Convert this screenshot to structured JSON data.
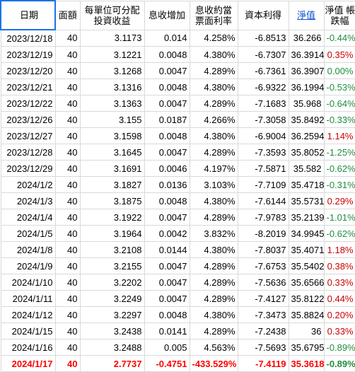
{
  "headers": {
    "date": "日期",
    "face": "面額",
    "distributable_line1": "每單位可分配",
    "distributable_line2": "投資收益",
    "interest_increase": "息收增加",
    "coupon_line1": "息收約當",
    "coupon_line2": "票面利率",
    "capital_gain": "資本利得",
    "nav": "淨值",
    "nav_change_line1": "淨值 帳",
    "nav_change_line2": "跌幅"
  },
  "rows": [
    {
      "date": "2023/12/18",
      "face": "40",
      "dist": "3.1173",
      "inc": "0.014",
      "rate": "4.258%",
      "gain": "-6.8513",
      "nav": "36.266",
      "chg": "-0.44%",
      "dir": "neg"
    },
    {
      "date": "2023/12/19",
      "face": "40",
      "dist": "3.1221",
      "inc": "0.0048",
      "rate": "4.380%",
      "gain": "-6.7307",
      "nav": "36.3914",
      "chg": "0.35%",
      "dir": "pos"
    },
    {
      "date": "2023/12/20",
      "face": "40",
      "dist": "3.1268",
      "inc": "0.0047",
      "rate": "4.289%",
      "gain": "-6.7361",
      "nav": "36.3907",
      "chg": "0.00%",
      "dir": "flat"
    },
    {
      "date": "2023/12/21",
      "face": "40",
      "dist": "3.1316",
      "inc": "0.0048",
      "rate": "4.380%",
      "gain": "-6.9322",
      "nav": "36.1994",
      "chg": "-0.53%",
      "dir": "neg"
    },
    {
      "date": "2023/12/22",
      "face": "40",
      "dist": "3.1363",
      "inc": "0.0047",
      "rate": "4.289%",
      "gain": "-7.1683",
      "nav": "35.968",
      "chg": "-0.64%",
      "dir": "neg"
    },
    {
      "date": "2023/12/26",
      "face": "40",
      "dist": "3.155",
      "inc": "0.0187",
      "rate": "4.266%",
      "gain": "-7.3058",
      "nav": "35.8492",
      "chg": "-0.33%",
      "dir": "neg"
    },
    {
      "date": "2023/12/27",
      "face": "40",
      "dist": "3.1598",
      "inc": "0.0048",
      "rate": "4.380%",
      "gain": "-6.9004",
      "nav": "36.2594",
      "chg": "1.14%",
      "dir": "pos"
    },
    {
      "date": "2023/12/28",
      "face": "40",
      "dist": "3.1645",
      "inc": "0.0047",
      "rate": "4.289%",
      "gain": "-7.3593",
      "nav": "35.8052",
      "chg": "-1.25%",
      "dir": "neg"
    },
    {
      "date": "2023/12/29",
      "face": "40",
      "dist": "3.1691",
      "inc": "0.0046",
      "rate": "4.197%",
      "gain": "-7.5871",
      "nav": "35.582",
      "chg": "-0.62%",
      "dir": "neg"
    },
    {
      "date": "2024/1/2",
      "face": "40",
      "dist": "3.1827",
      "inc": "0.0136",
      "rate": "3.103%",
      "gain": "-7.7109",
      "nav": "35.4718",
      "chg": "-0.31%",
      "dir": "neg"
    },
    {
      "date": "2024/1/3",
      "face": "40",
      "dist": "3.1875",
      "inc": "0.0048",
      "rate": "4.380%",
      "gain": "-7.6144",
      "nav": "35.5731",
      "chg": "0.29%",
      "dir": "pos"
    },
    {
      "date": "2024/1/4",
      "face": "40",
      "dist": "3.1922",
      "inc": "0.0047",
      "rate": "4.289%",
      "gain": "-7.9783",
      "nav": "35.2139",
      "chg": "-1.01%",
      "dir": "neg"
    },
    {
      "date": "2024/1/5",
      "face": "40",
      "dist": "3.1964",
      "inc": "0.0042",
      "rate": "3.832%",
      "gain": "-8.2019",
      "nav": "34.9945",
      "chg": "-0.62%",
      "dir": "neg"
    },
    {
      "date": "2024/1/8",
      "face": "40",
      "dist": "3.2108",
      "inc": "0.0144",
      "rate": "4.380%",
      "gain": "-7.8037",
      "nav": "35.4071",
      "chg": "1.18%",
      "dir": "pos"
    },
    {
      "date": "2024/1/9",
      "face": "40",
      "dist": "3.2155",
      "inc": "0.0047",
      "rate": "4.289%",
      "gain": "-7.6753",
      "nav": "35.5402",
      "chg": "0.38%",
      "dir": "pos"
    },
    {
      "date": "2024/1/10",
      "face": "40",
      "dist": "3.2202",
      "inc": "0.0047",
      "rate": "4.289%",
      "gain": "-7.5636",
      "nav": "35.6566",
      "chg": "0.33%",
      "dir": "pos"
    },
    {
      "date": "2024/1/11",
      "face": "40",
      "dist": "3.2249",
      "inc": "0.0047",
      "rate": "4.289%",
      "gain": "-7.4127",
      "nav": "35.8122",
      "chg": "0.44%",
      "dir": "pos"
    },
    {
      "date": "2024/1/12",
      "face": "40",
      "dist": "3.2297",
      "inc": "0.0048",
      "rate": "4.380%",
      "gain": "-7.3473",
      "nav": "35.8824",
      "chg": "0.20%",
      "dir": "pos"
    },
    {
      "date": "2024/1/15",
      "face": "40",
      "dist": "3.2438",
      "inc": "0.0141",
      "rate": "4.289%",
      "gain": "-7.2438",
      "nav": "36",
      "chg": "0.33%",
      "dir": "pos"
    },
    {
      "date": "2024/1/16",
      "face": "40",
      "dist": "3.2488",
      "inc": "0.005",
      "rate": "4.563%",
      "gain": "-7.5693",
      "nav": "35.6795",
      "chg": "-0.89%",
      "dir": "neg"
    }
  ],
  "summary": {
    "date": "2024/1/17",
    "face": "40",
    "dist": "2.7737",
    "inc": "-0.4751",
    "rate": "-433.529%",
    "gain": "-7.4119",
    "nav": "35.3618",
    "chg": "-0.89%",
    "dir": "neg"
  },
  "colors": {
    "positive": "#cc0000",
    "negative": "#1e8e3e",
    "summary": "#ff0000",
    "selection": "#1a73e8",
    "link": "#1155cc"
  }
}
